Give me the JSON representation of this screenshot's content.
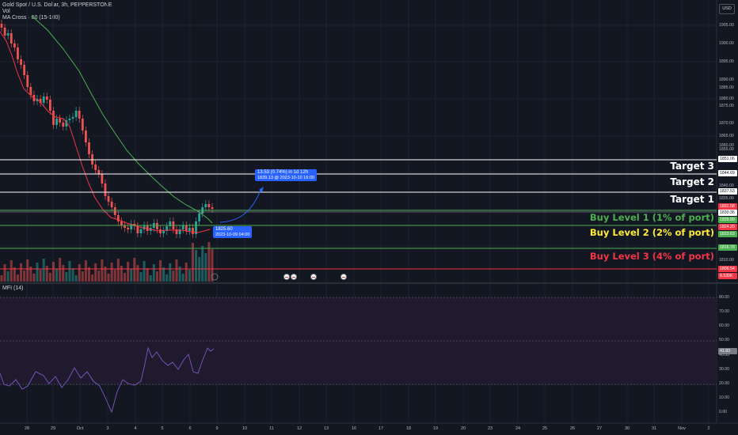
{
  "header": {
    "symbol": "Gold Spot / U.S. Dollar, 3h, PEPPERSTONE",
    "vol_label": "Vol",
    "ma_label": "MA Cross · 60 (15-100)",
    "currency": "USD"
  },
  "levels": {
    "target3": "Target 3",
    "target2": "Target 2",
    "target1": "Target 1",
    "buy1": "Buy Level 1 (1% of port)",
    "buy2": "Buy Level 2 (2% of port)",
    "buy3": "Buy Level 3 (4% of port)"
  },
  "callouts": {
    "projection_line1": "13.53 (0.74%) in 1d 12h",
    "projection_line2": "1839.13 @ 2023-10-10 16:00",
    "entry_line1": "1825.60",
    "entry_line2": "2023-10-09 04:00"
  },
  "price_axis": [
    "1910.00",
    "1905.00",
    "1900.00",
    "1895.00",
    "1890.00",
    "1885.00",
    "1880.00",
    "1875.00",
    "1870.00",
    "1865.00",
    "1860.00",
    "1855.00",
    "1840.00",
    "1835.00",
    "1810.00"
  ],
  "price_tags": [
    "1851.06",
    "1844.69",
    "1837.53",
    "1831.58",
    "1830.36",
    "1829.89",
    "1824.20",
    "1823.63",
    "1816.70",
    "1806.54",
    "8.535K"
  ],
  "mfi": {
    "title": "MFI (14)",
    "axis": [
      "80.00",
      "70.00",
      "60.00",
      "50.00",
      "40.00",
      "30.00",
      "20.00",
      "10.00",
      "0.00"
    ],
    "value": "41.83"
  },
  "time_axis": [
    "28",
    "29",
    "Oct",
    "3",
    "4",
    "5",
    "6",
    "9",
    "10",
    "11",
    "12",
    "13",
    "16",
    "17",
    "18",
    "19",
    "20",
    "23",
    "24",
    "25",
    "26",
    "27",
    "30",
    "31",
    "Nov",
    "2"
  ],
  "colors": {
    "background": "#131722",
    "up": "#26a69a",
    "down": "#ef5350",
    "ma_short": "#f23645",
    "ma_long": "#4caf50",
    "buy1": "#4caf50",
    "buy2": "#ffeb3b",
    "buy3": "#f23645",
    "callout": "#2962ff"
  }
}
